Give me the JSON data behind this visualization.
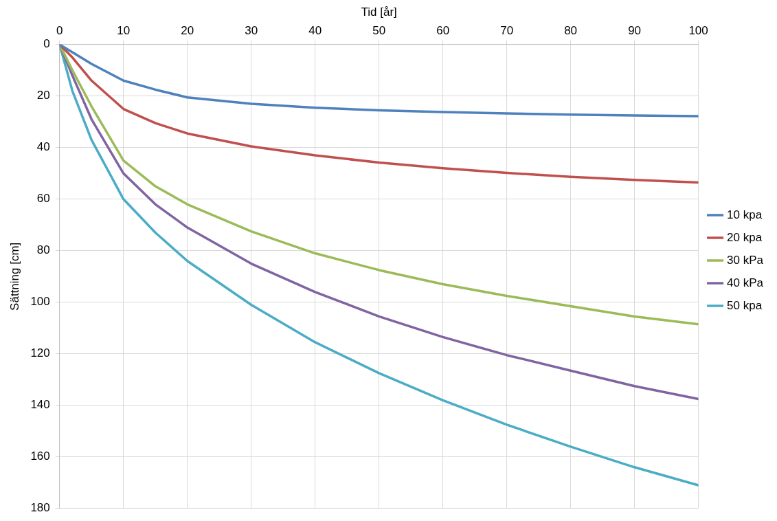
{
  "chart_data": {
    "type": "line",
    "xlabel": "Tid [år]",
    "ylabel": "Sättning [cm]",
    "xlim": [
      0,
      100
    ],
    "xticks": [
      0,
      10,
      20,
      30,
      40,
      50,
      60,
      70,
      80,
      90,
      100
    ],
    "ylim": [
      180,
      0
    ],
    "yticks": [
      0,
      20,
      40,
      60,
      80,
      100,
      120,
      140,
      160,
      180
    ],
    "x": [
      0,
      2,
      5,
      10,
      15,
      20,
      30,
      40,
      50,
      60,
      70,
      80,
      90,
      100
    ],
    "grid": true,
    "legend": "right",
    "marker": "none",
    "line_style": "solid",
    "series": [
      {
        "name": "10 kpa",
        "color": "#4f81bd",
        "values": [
          0,
          3,
          7.5,
          14,
          17.5,
          20.5,
          23,
          24.5,
          25.5,
          26.2,
          26.7,
          27.2,
          27.5,
          27.8
        ]
      },
      {
        "name": "20 kpa",
        "color": "#c0504d",
        "values": [
          0,
          5,
          14,
          25,
          30.5,
          34.5,
          39.5,
          43,
          45.8,
          48,
          49.8,
          51.3,
          52.5,
          53.5
        ]
      },
      {
        "name": "30 kPa",
        "color": "#9bbb59",
        "values": [
          0,
          10,
          24,
          45,
          55,
          62,
          72.5,
          81,
          87.5,
          93,
          97.5,
          101.5,
          105.5,
          108.5
        ]
      },
      {
        "name": "40 kPa",
        "color": "#8064a2",
        "values": [
          0,
          12,
          29,
          50,
          62,
          71,
          85,
          96,
          105.5,
          113.5,
          120.5,
          126.5,
          132.5,
          137.5
        ]
      },
      {
        "name": "50 kpa",
        "color": "#4bacc6",
        "values": [
          0,
          18,
          37,
          60,
          73,
          84,
          101,
          115.5,
          127.5,
          138,
          147.5,
          156,
          164,
          171
        ]
      }
    ]
  }
}
